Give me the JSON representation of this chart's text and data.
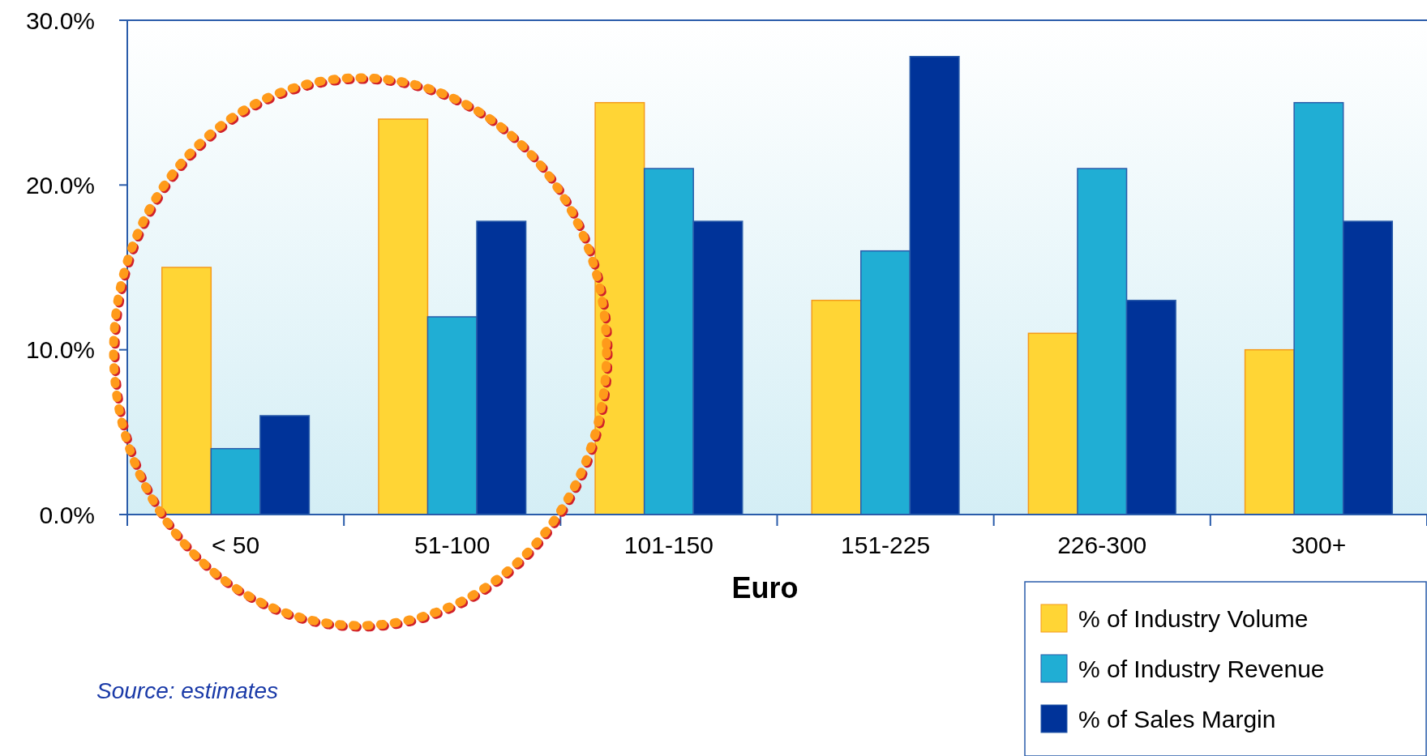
{
  "chart_data": {
    "type": "bar",
    "xlabel": "Euro",
    "categories": [
      "< 50",
      "51-100",
      "101-150",
      "151-225",
      "226-300",
      "300+"
    ],
    "series": [
      {
        "name": "% of Industry Volume",
        "color": "#ffd535",
        "values": [
          15,
          24,
          25,
          13,
          11,
          10
        ]
      },
      {
        "name": "% of Industry Revenue",
        "color": "#20aed4",
        "values": [
          4,
          12,
          21,
          16,
          21,
          25
        ]
      },
      {
        "name": "% of Sales Margin",
        "color": "#003399",
        "values": [
          6,
          17.8,
          17.8,
          27.8,
          13,
          17.8
        ]
      }
    ],
    "ylim": [
      0,
      30
    ],
    "yticks": [
      {
        "value": 0,
        "label": "0.0%"
      },
      {
        "value": 10,
        "label": "10.0%"
      },
      {
        "value": 20,
        "label": "20.0%"
      },
      {
        "value": 30,
        "label": "30.0%"
      }
    ],
    "grid": false,
    "legend": "bottom right",
    "annotations": [
      "Source: estimates"
    ]
  }
}
